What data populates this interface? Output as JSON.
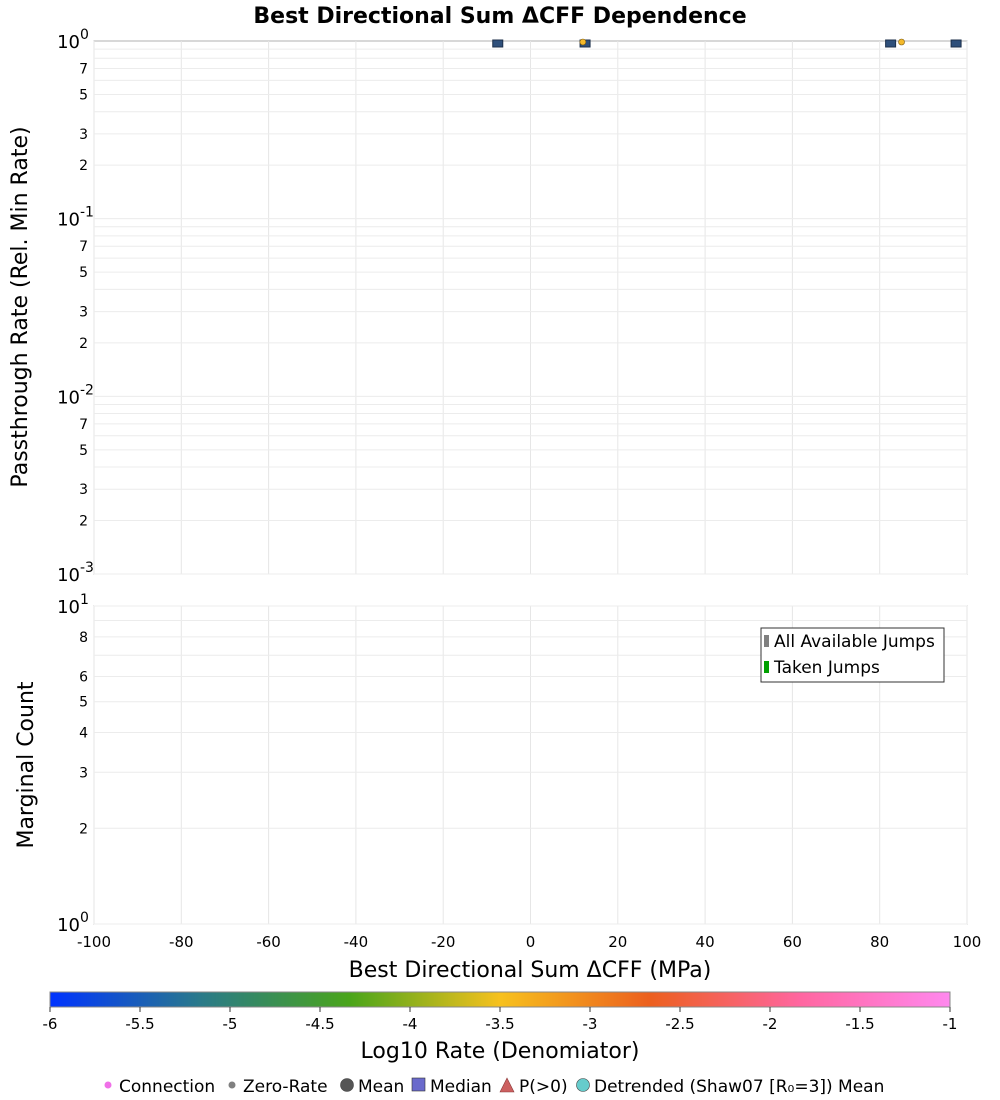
{
  "chart_data": [
    {
      "type": "scatter",
      "title": "Best Directional Sum ΔCFF Dependence",
      "xlabel": "Best Directional Sum ΔCFF (MPa)",
      "ylabel": "Passthrough Rate (Rel. Min Rate)",
      "xlim": [
        -100,
        100
      ],
      "ylim": [
        0.001,
        1
      ],
      "yscale": "log",
      "grid": true,
      "x_ticks": [
        "-100",
        "-80",
        "-60",
        "-40",
        "-20",
        "0",
        "20",
        "40",
        "60",
        "80",
        "100"
      ],
      "y_major_ticks": [
        {
          "value": 1,
          "base": "10",
          "exp": "0"
        },
        {
          "value": 0.1,
          "base": "10",
          "exp": "-1"
        },
        {
          "value": 0.01,
          "base": "10",
          "exp": "-2"
        },
        {
          "value": 0.001,
          "base": "10",
          "exp": "-3"
        }
      ],
      "y_minor_labels": [
        "2",
        "3",
        "5",
        "7"
      ],
      "series": [
        {
          "name": "Median",
          "marker": "square",
          "color": "#2e4f7a",
          "x": [
            -7.5,
            12.5,
            82.5,
            97.5
          ],
          "y": [
            1,
            1,
            1,
            1
          ]
        },
        {
          "name": "Mean",
          "marker": "circle",
          "color": "#f4b92a",
          "x": [
            12,
            85
          ],
          "y": [
            1,
            1
          ]
        }
      ]
    },
    {
      "type": "bar",
      "ylabel": "Marginal Count",
      "xlim": [
        -100,
        100
      ],
      "ylim": [
        1,
        10
      ],
      "yscale": "log",
      "grid": true,
      "y_major_ticks": [
        {
          "value": 10,
          "base": "10",
          "exp": "1"
        },
        {
          "value": 1,
          "base": "10",
          "exp": "0"
        }
      ],
      "y_minor_labels": [
        "2",
        "3",
        "4",
        "5",
        "6",
        "8"
      ],
      "legend": {
        "placement": "top-right",
        "entries": [
          {
            "label": "All Available Jumps",
            "color": "#808080"
          },
          {
            "label": "Taken Jumps",
            "color": "#00a000"
          }
        ]
      },
      "series": []
    }
  ],
  "colorbar": {
    "label": "Log10 Rate (Denomiator)",
    "min": -6,
    "max": -1,
    "ticks": [
      "-6",
      "-5.5",
      "-5",
      "-4.5",
      "-4",
      "-3.5",
      "-3",
      "-2.5",
      "-2",
      "-1.5",
      "-1"
    ],
    "colors": [
      "#0033ff",
      "#2a7a8a",
      "#4aa51a",
      "#f7c11e",
      "#ec5f1e",
      "#ff66a0",
      "#ff88ee"
    ]
  },
  "bottom_legend": [
    {
      "label": "Connection",
      "marker": "dot",
      "color": "#f070e8"
    },
    {
      "label": "Zero-Rate",
      "marker": "dot",
      "color": "#808080"
    },
    {
      "label": "Mean",
      "marker": "circle",
      "color": "#555555"
    },
    {
      "label": "Median",
      "marker": "square",
      "color": "#6a6acc"
    },
    {
      "label": "P(>0)",
      "marker": "triangle",
      "color": "#cc6060"
    },
    {
      "label": "Detrended (Shaw07 [R₀=3]) Mean",
      "marker": "circle",
      "color": "#66cccc"
    }
  ]
}
